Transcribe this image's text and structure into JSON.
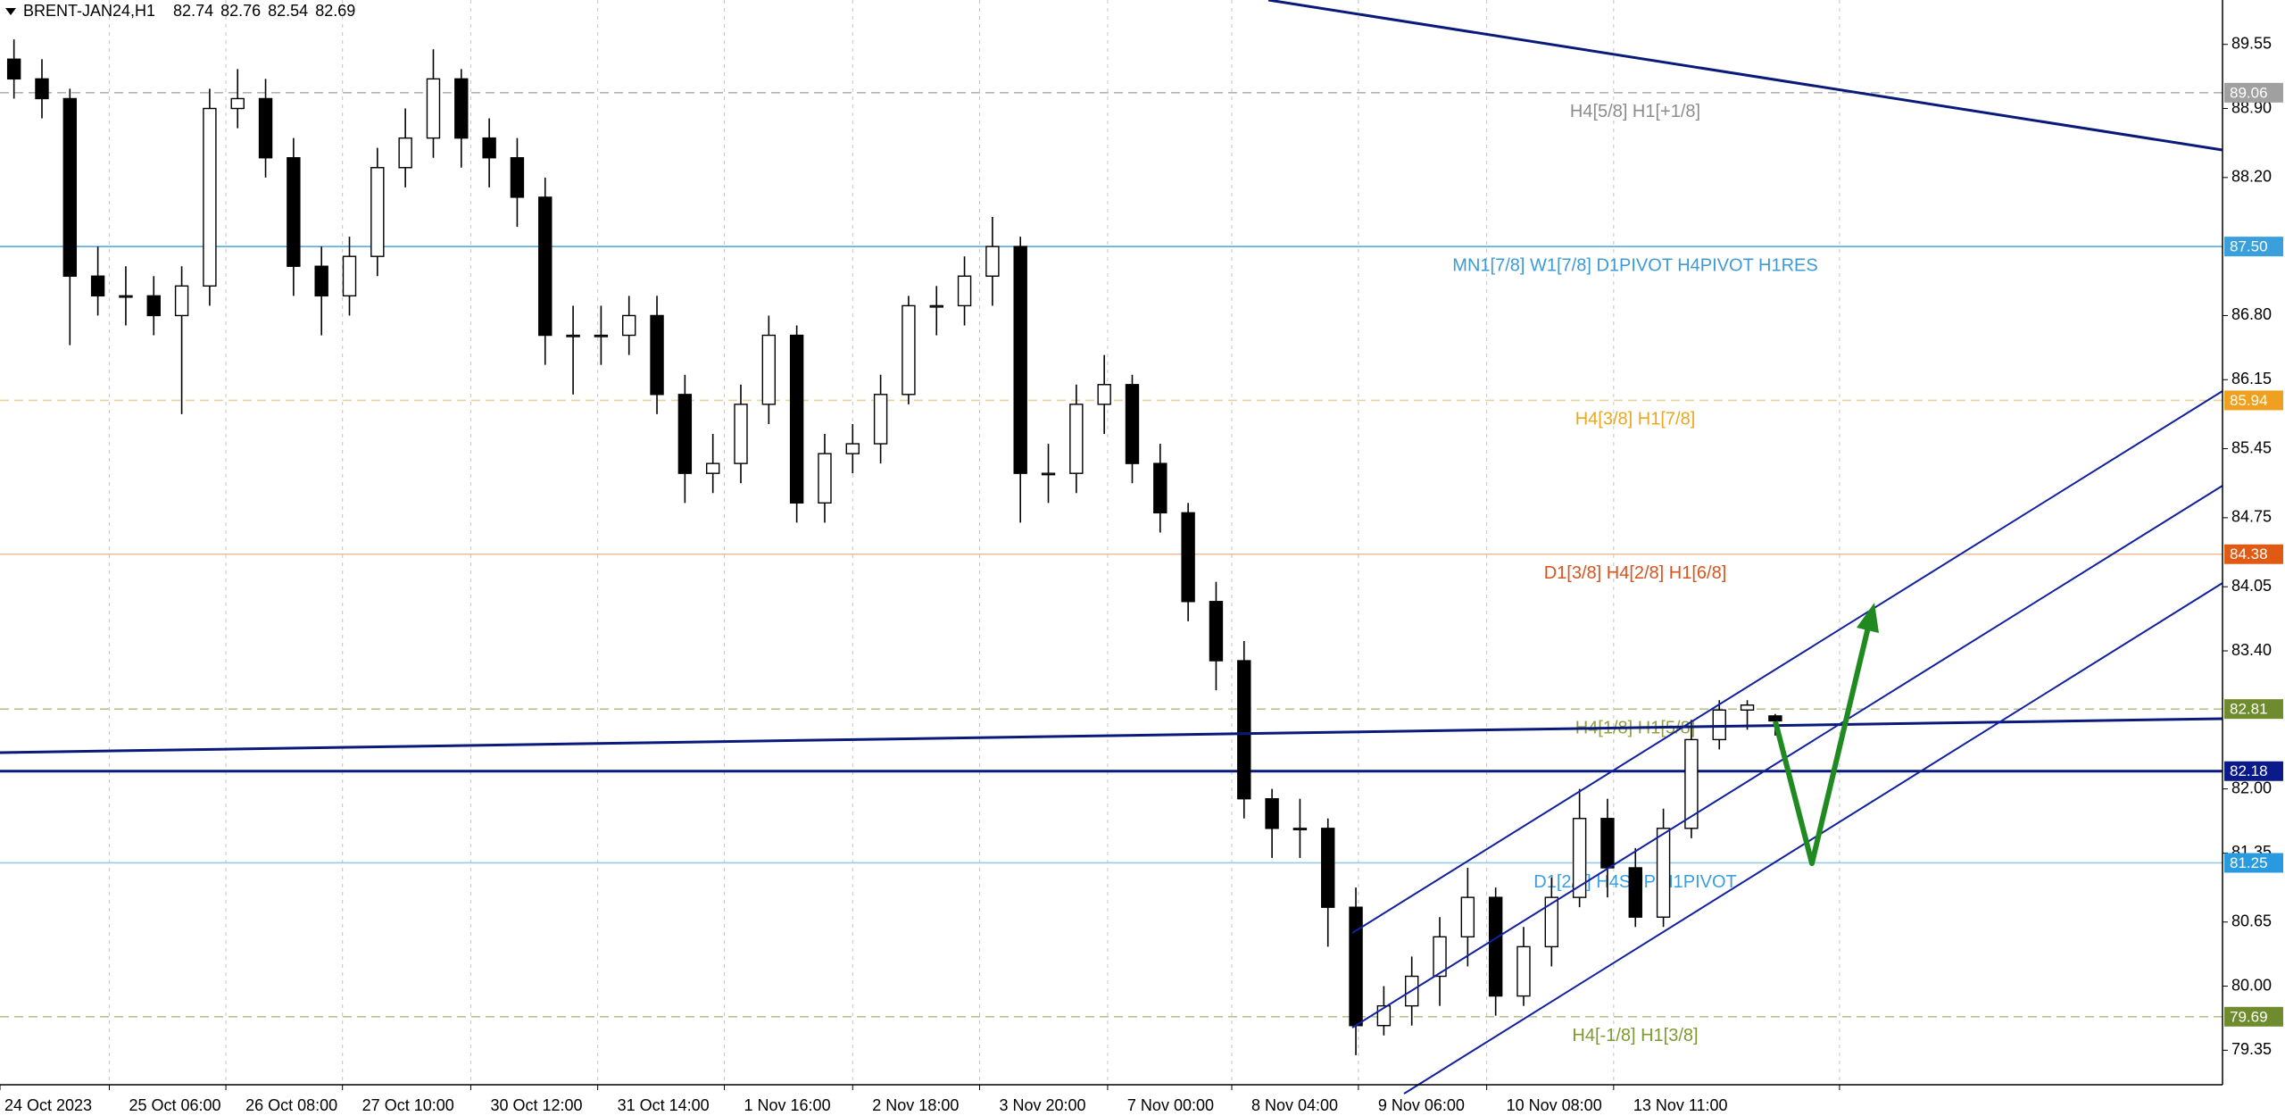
{
  "chart_data": {
    "type": "candlestick",
    "title": "BRENT-JAN24,H1",
    "open": [
      89.4,
      89.2,
      89.0,
      87.2,
      87.0,
      87.0,
      86.8,
      87.1,
      88.9,
      89.0,
      88.4,
      87.3,
      87.0,
      87.4,
      88.3,
      88.6,
      89.2,
      88.6,
      88.4,
      88.0,
      86.6,
      86.6,
      86.6,
      86.8,
      86.0,
      85.2,
      85.3,
      85.9,
      86.6,
      84.9,
      85.4,
      85.5,
      86.0,
      86.9,
      86.9,
      87.2,
      87.5,
      85.2,
      85.2,
      85.9,
      86.1,
      85.3,
      84.8,
      83.9,
      83.3,
      81.9,
      81.6,
      81.6,
      80.8,
      79.6,
      79.8,
      80.1,
      80.5,
      80.9,
      79.9,
      80.4,
      80.9,
      81.7,
      81.2,
      80.7,
      81.6,
      82.5,
      82.8,
      82.74
    ],
    "high": [
      89.6,
      89.4,
      89.1,
      87.5,
      87.3,
      87.2,
      87.3,
      89.1,
      89.3,
      89.2,
      88.6,
      87.5,
      87.6,
      88.5,
      88.9,
      89.5,
      89.3,
      88.8,
      88.6,
      88.2,
      86.9,
      86.9,
      87.0,
      87.0,
      86.2,
      85.6,
      86.1,
      86.8,
      86.7,
      85.6,
      85.7,
      86.2,
      87.0,
      87.1,
      87.4,
      87.8,
      87.6,
      85.5,
      86.1,
      86.4,
      86.2,
      85.5,
      84.9,
      84.1,
      83.5,
      82.0,
      81.9,
      81.7,
      81.0,
      80.0,
      80.3,
      80.7,
      81.2,
      81.0,
      80.6,
      81.1,
      82.0,
      81.9,
      81.4,
      81.8,
      82.7,
      82.9,
      82.9,
      82.76
    ],
    "low": [
      89.0,
      88.8,
      86.5,
      86.8,
      86.7,
      86.6,
      85.8,
      86.9,
      88.7,
      88.2,
      87.0,
      86.6,
      86.8,
      87.2,
      88.1,
      88.4,
      88.3,
      88.1,
      87.7,
      86.3,
      86.0,
      86.3,
      86.4,
      85.8,
      84.9,
      85.0,
      85.1,
      85.7,
      84.7,
      84.7,
      85.2,
      85.3,
      85.9,
      86.6,
      86.7,
      86.9,
      84.7,
      84.9,
      85.0,
      85.6,
      85.1,
      84.6,
      83.7,
      83.0,
      81.7,
      81.3,
      81.3,
      80.4,
      79.3,
      79.5,
      79.6,
      79.8,
      80.2,
      79.7,
      79.8,
      80.2,
      80.8,
      80.9,
      80.6,
      80.6,
      81.5,
      82.4,
      82.6,
      82.54
    ],
    "close": [
      89.2,
      89.0,
      87.2,
      87.0,
      87.0,
      86.8,
      87.1,
      88.9,
      89.0,
      88.4,
      87.3,
      87.0,
      87.4,
      88.3,
      88.6,
      89.2,
      88.6,
      88.4,
      88.0,
      86.6,
      86.6,
      86.6,
      86.8,
      86.0,
      85.2,
      85.3,
      85.9,
      86.6,
      84.9,
      85.4,
      85.5,
      86.0,
      86.9,
      86.9,
      87.2,
      87.5,
      85.2,
      85.2,
      85.9,
      86.1,
      85.3,
      84.8,
      83.9,
      83.3,
      81.9,
      81.6,
      81.6,
      80.8,
      79.6,
      79.8,
      80.1,
      80.5,
      80.9,
      79.9,
      80.4,
      80.9,
      81.7,
      81.2,
      80.7,
      81.6,
      82.5,
      82.8,
      82.85,
      82.69
    ],
    "xlim": [
      -0.5,
      79.0
    ],
    "xticks": [
      {
        "value": -0.5,
        "label": "24 Oct 2023"
      },
      {
        "value": 3.41,
        "label": "25 Oct 06:00"
      },
      {
        "value": 7.58,
        "label": "26 Oct 08:00"
      },
      {
        "value": 11.75,
        "label": "27 Oct 10:00"
      },
      {
        "value": 16.34,
        "label": "30 Oct 12:00"
      },
      {
        "value": 20.88,
        "label": "31 Oct 14:00"
      },
      {
        "value": 25.41,
        "label": "1 Nov 16:00"
      },
      {
        "value": 30.0,
        "label": "2 Nov 18:00"
      },
      {
        "value": 34.54,
        "label": "3 Nov 20:00"
      },
      {
        "value": 39.12,
        "label": "7 Nov 00:00"
      },
      {
        "value": 43.56,
        "label": "8 Nov 04:00"
      },
      {
        "value": 48.09,
        "label": "9 Nov 06:00"
      },
      {
        "value": 52.68,
        "label": "10 Nov 08:00"
      },
      {
        "value": 57.22,
        "label": "13 Nov 11:00"
      },
      {
        "value": 65.3,
        "label": null
      }
    ],
    "ylim": [
      79.0,
      90.0
    ],
    "yticks": [
      89.55,
      {
        "value": 88.9,
        "label": "88.90"
      },
      {
        "value": 88.2,
        "label": "88.20"
      },
      {
        "value": 86.8,
        "label": "86.80"
      },
      86.15,
      85.45,
      84.75,
      84.05,
      {
        "value": 83.4,
        "label": "83.40"
      },
      {
        "value": 82,
        "label": "82.00"
      },
      81.35,
      80.65,
      {
        "value": 80,
        "label": "80.00"
      },
      79.35
    ],
    "grid": true,
    "levels": {
      "names": [
        "H4[5/8] H1[+1/8]",
        "MN1[7/8] W1[7/8] D1PIVOT H4PIVOT H1RES",
        "H4[3/8] H1[7/8]",
        "D1[3/8] H4[2/8] H1[6/8]",
        "H4[1/8] H1[5/8]",
        null,
        "D1[2/8] H4SUP H1PIVOT",
        "H4[-1/8] H1[3/8]"
      ],
      "values": [
        89.06,
        87.5,
        85.94,
        84.38,
        82.81,
        82.18,
        81.25,
        79.69
      ],
      "value_labels": [
        "89.06",
        "87.50",
        "85.94",
        "84.38",
        "82.81",
        "82.18",
        "81.25",
        "79.69"
      ],
      "colors": [
        "#b4b4b4",
        "#4aa3d8",
        "#e8d49a",
        "#f0bc98",
        "#b8c490",
        "#0a1a7a",
        "#98cbe8",
        "#b8c490"
      ],
      "label_colors": [
        "#a0a0a0",
        "#3aa0dc",
        "#f0a020",
        "#e05a14",
        "#6e8c2e",
        "#0a1a8a",
        "#2a9ae0",
        "#6e8c2e"
      ],
      "name_colors": [
        "#8c8c8c",
        "#3c9ad6",
        "#e8a820",
        "#d9531e",
        "#8da040",
        null,
        "#3a9ee0",
        "#7d9a30"
      ],
      "dashed": [
        true,
        false,
        true,
        false,
        true,
        false,
        false,
        true
      ]
    }
  }
}
